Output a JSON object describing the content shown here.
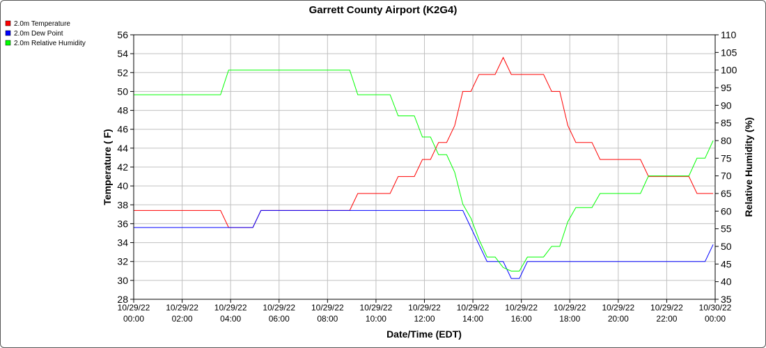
{
  "colors": {
    "temperature": "#ff0000",
    "dew_point": "#0000ff",
    "relative_humidity": "#00ff00",
    "grid": "#c0c0c0",
    "axis": "#000000"
  },
  "chart_data": {
    "type": "line",
    "title": "Garrett County Airport (K2G4)",
    "xlabel": "Date/Time (EDT)",
    "ylabel": "Temperature ( F)",
    "y2label": "Relative Humidity (%)",
    "ylim": [
      28,
      56
    ],
    "y2lim": [
      35,
      110
    ],
    "yticks": [
      28,
      30,
      32,
      34,
      36,
      38,
      40,
      42,
      44,
      46,
      48,
      50,
      52,
      54,
      56
    ],
    "y2ticks": [
      35,
      40,
      45,
      50,
      55,
      60,
      65,
      70,
      75,
      80,
      85,
      90,
      95,
      100,
      105,
      110
    ],
    "xlim": [
      "10/29/22 00:00",
      "10/30/22 00:00"
    ],
    "xticks": [
      {
        "date": "10/29/22",
        "time": "00:00"
      },
      {
        "date": "10/29/22",
        "time": "02:00"
      },
      {
        "date": "10/29/22",
        "time": "04:00"
      },
      {
        "date": "10/29/22",
        "time": "06:00"
      },
      {
        "date": "10/29/22",
        "time": "08:00"
      },
      {
        "date": "10/29/22",
        "time": "10:00"
      },
      {
        "date": "10/29/22",
        "time": "12:00"
      },
      {
        "date": "10/29/22",
        "time": "14:00"
      },
      {
        "date": "10/29/22",
        "time": "16:00"
      },
      {
        "date": "10/29/22",
        "time": "18:00"
      },
      {
        "date": "10/29/22",
        "time": "20:00"
      },
      {
        "date": "10/29/22",
        "time": "22:00"
      },
      {
        "date": "10/30/22",
        "time": "00:00"
      }
    ],
    "grid": true,
    "legend_position": "top-left",
    "series": [
      {
        "name": "2.0m Temperature",
        "axis": "left",
        "color": "#ff0000",
        "points": [
          [
            "10/29/22 00:00",
            37.4
          ],
          [
            "10/29/22 03:35",
            37.4
          ],
          [
            "10/29/22 03:55",
            35.6
          ],
          [
            "10/29/22 04:55",
            35.6
          ],
          [
            "10/29/22 05:15",
            37.4
          ],
          [
            "10/29/22 08:55",
            37.4
          ],
          [
            "10/29/22 09:15",
            39.2
          ],
          [
            "10/29/22 10:35",
            39.2
          ],
          [
            "10/29/22 10:55",
            41.0
          ],
          [
            "10/29/22 11:35",
            41.0
          ],
          [
            "10/29/22 11:55",
            42.8
          ],
          [
            "10/29/22 12:15",
            42.8
          ],
          [
            "10/29/22 12:35",
            44.6
          ],
          [
            "10/29/22 12:55",
            44.6
          ],
          [
            "10/29/22 13:15",
            46.4
          ],
          [
            "10/29/22 13:35",
            50.0
          ],
          [
            "10/29/22 13:55",
            50.0
          ],
          [
            "10/29/22 14:15",
            51.8
          ],
          [
            "10/29/22 14:55",
            51.8
          ],
          [
            "10/29/22 15:15",
            53.6
          ],
          [
            "10/29/22 15:35",
            51.8
          ],
          [
            "10/29/22 16:55",
            51.8
          ],
          [
            "10/29/22 17:15",
            50.0
          ],
          [
            "10/29/22 17:35",
            50.0
          ],
          [
            "10/29/22 17:55",
            46.4
          ],
          [
            "10/29/22 18:15",
            44.6
          ],
          [
            "10/29/22 18:55",
            44.6
          ],
          [
            "10/29/22 19:15",
            42.8
          ],
          [
            "10/29/22 20:55",
            42.8
          ],
          [
            "10/29/22 21:15",
            41.0
          ],
          [
            "10/29/22 22:55",
            41.0
          ],
          [
            "10/29/22 23:15",
            39.2
          ],
          [
            "10/29/22 23:55",
            39.2
          ]
        ]
      },
      {
        "name": "2.0m Dew Point",
        "axis": "left",
        "color": "#0000ff",
        "points": [
          [
            "10/29/22 00:00",
            35.6
          ],
          [
            "10/29/22 04:55",
            35.6
          ],
          [
            "10/29/22 05:15",
            37.4
          ],
          [
            "10/29/22 13:35",
            37.4
          ],
          [
            "10/29/22 13:55",
            35.6
          ],
          [
            "10/29/22 14:15",
            33.8
          ],
          [
            "10/29/22 14:35",
            32.0
          ],
          [
            "10/29/22 15:15",
            32.0
          ],
          [
            "10/29/22 15:35",
            30.2
          ],
          [
            "10/29/22 15:55",
            30.2
          ],
          [
            "10/29/22 16:15",
            32.0
          ],
          [
            "10/29/22 23:35",
            32.0
          ],
          [
            "10/29/22 23:55",
            33.8
          ]
        ]
      },
      {
        "name": "2.0m Relative Humidity",
        "axis": "right",
        "color": "#00ff00",
        "points": [
          [
            "10/29/22 00:00",
            93
          ],
          [
            "10/29/22 03:35",
            93
          ],
          [
            "10/29/22 03:55",
            100
          ],
          [
            "10/29/22 08:55",
            100
          ],
          [
            "10/29/22 09:15",
            93
          ],
          [
            "10/29/22 10:35",
            93
          ],
          [
            "10/29/22 10:55",
            87
          ],
          [
            "10/29/22 11:35",
            87
          ],
          [
            "10/29/22 11:55",
            81
          ],
          [
            "10/29/22 12:15",
            81
          ],
          [
            "10/29/22 12:35",
            76
          ],
          [
            "10/29/22 12:55",
            76
          ],
          [
            "10/29/22 13:15",
            71
          ],
          [
            "10/29/22 13:35",
            62
          ],
          [
            "10/29/22 13:55",
            58
          ],
          [
            "10/29/22 14:15",
            52
          ],
          [
            "10/29/22 14:35",
            47
          ],
          [
            "10/29/22 14:55",
            47
          ],
          [
            "10/29/22 15:15",
            44
          ],
          [
            "10/29/22 15:35",
            43
          ],
          [
            "10/29/22 15:55",
            43
          ],
          [
            "10/29/22 16:15",
            47
          ],
          [
            "10/29/22 16:55",
            47
          ],
          [
            "10/29/22 17:15",
            50
          ],
          [
            "10/29/22 17:35",
            50
          ],
          [
            "10/29/22 17:55",
            57
          ],
          [
            "10/29/22 18:15",
            61
          ],
          [
            "10/29/22 18:55",
            61
          ],
          [
            "10/29/22 19:15",
            65
          ],
          [
            "10/29/22 20:55",
            65
          ],
          [
            "10/29/22 21:15",
            70
          ],
          [
            "10/29/22 22:55",
            70
          ],
          [
            "10/29/22 23:15",
            75
          ],
          [
            "10/29/22 23:35",
            75
          ],
          [
            "10/29/22 23:55",
            80
          ]
        ]
      }
    ]
  }
}
